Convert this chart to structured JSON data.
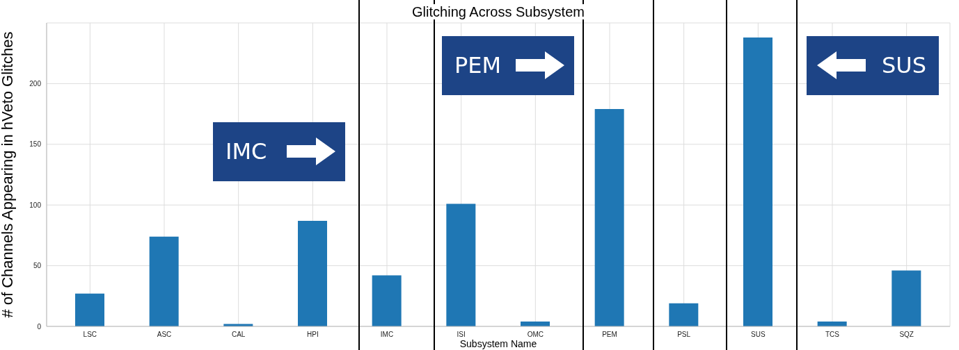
{
  "chart_data": {
    "type": "bar",
    "title": "Glitching Across Subsystem",
    "xlabel": "Subsystem Name",
    "ylabel": "# of Channels Appearing in hVeto Glitches",
    "categories": [
      "LSC",
      "ASC",
      "CAL",
      "HPI",
      "IMC",
      "ISI",
      "OMC",
      "PEM",
      "PSL",
      "SUS",
      "TCS",
      "SQZ"
    ],
    "values": [
      27,
      74,
      2,
      87,
      42,
      101,
      4,
      179,
      19,
      238,
      4,
      46
    ],
    "color": "#1f77b4",
    "ylim": [
      0,
      250
    ],
    "yticks": [
      0,
      50,
      100,
      150,
      200
    ],
    "grid": true,
    "annotations": [
      "IMC",
      "PEM",
      "SUS"
    ]
  }
}
